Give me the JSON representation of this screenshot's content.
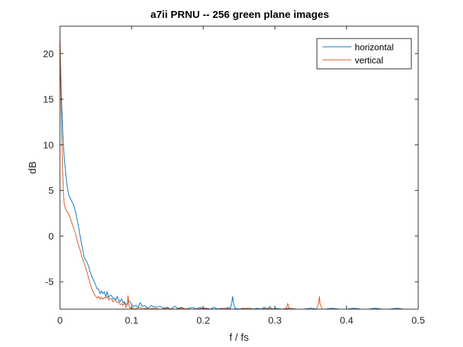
{
  "chart_data": {
    "type": "line",
    "title": "a7ii PRNU -- 256 green plane images",
    "xlabel": "f / fs",
    "ylabel": "dB",
    "xlim": [
      0,
      0.5
    ],
    "ylim": [
      -8,
      23
    ],
    "xticks": [
      0,
      0.1,
      0.2,
      0.3,
      0.4,
      0.5
    ],
    "xtick_labels": [
      "0",
      "0.1",
      "0.2",
      "0.3",
      "0.4",
      "0.5"
    ],
    "yticks": [
      -5,
      0,
      5,
      10,
      15,
      20
    ],
    "ytick_labels": [
      "-5",
      "0",
      "5",
      "10",
      "15",
      "20"
    ],
    "grid": false,
    "box": true,
    "legend": {
      "position": "top-right"
    },
    "series": [
      {
        "name": "horizontal",
        "color": "#0072BD",
        "points": [
          [
            0.0,
            21.5
          ],
          [
            0.002,
            15.5
          ],
          [
            0.004,
            11.2
          ],
          [
            0.006,
            8.5
          ],
          [
            0.008,
            7.0
          ],
          [
            0.01,
            5.5
          ],
          [
            0.012,
            4.6
          ],
          [
            0.014,
            4.2
          ],
          [
            0.016,
            3.9
          ],
          [
            0.018,
            3.6
          ],
          [
            0.02,
            3.2
          ],
          [
            0.022,
            2.6
          ],
          [
            0.024,
            1.8
          ],
          [
            0.026,
            1.0
          ],
          [
            0.028,
            0.1
          ],
          [
            0.03,
            -0.7
          ],
          [
            0.032,
            -1.6
          ],
          [
            0.034,
            -2.4
          ],
          [
            0.036,
            -2.6
          ],
          [
            0.038,
            -2.9
          ],
          [
            0.04,
            -3.3
          ],
          [
            0.042,
            -3.9
          ],
          [
            0.044,
            -4.3
          ],
          [
            0.046,
            -4.7
          ],
          [
            0.048,
            -5.0
          ],
          [
            0.05,
            -5.4
          ],
          [
            0.052,
            -5.8
          ],
          [
            0.054,
            -5.8
          ],
          [
            0.056,
            -6.3
          ],
          [
            0.058,
            -6.0
          ],
          [
            0.06,
            -6.3
          ],
          [
            0.062,
            -6.1
          ],
          [
            0.064,
            -6.6
          ],
          [
            0.066,
            -6.1
          ],
          [
            0.068,
            -6.7
          ],
          [
            0.07,
            -6.5
          ],
          [
            0.072,
            -6.5
          ],
          [
            0.074,
            -6.9
          ],
          [
            0.076,
            -6.8
          ],
          [
            0.078,
            -7.0
          ],
          [
            0.08,
            -6.6
          ],
          [
            0.082,
            -7.0
          ],
          [
            0.084,
            -7.2
          ],
          [
            0.086,
            -6.9
          ],
          [
            0.088,
            -7.3
          ],
          [
            0.09,
            -7.2
          ],
          [
            0.092,
            -7.5
          ],
          [
            0.094,
            -7.4
          ],
          [
            0.096,
            -7.1
          ],
          [
            0.098,
            -7.2
          ],
          [
            0.1,
            -7.5
          ],
          [
            0.103,
            -7.7
          ],
          [
            0.106,
            -7.6
          ],
          [
            0.109,
            -7.8
          ],
          [
            0.112,
            -7.3
          ],
          [
            0.115,
            -7.7
          ],
          [
            0.118,
            -7.6
          ],
          [
            0.121,
            -7.8
          ],
          [
            0.124,
            -7.9
          ],
          [
            0.127,
            -7.6
          ],
          [
            0.13,
            -7.7
          ],
          [
            0.135,
            -7.8
          ],
          [
            0.14,
            -7.7
          ],
          [
            0.145,
            -7.9
          ],
          [
            0.15,
            -7.8
          ],
          [
            0.155,
            -8.0
          ],
          [
            0.16,
            -7.7
          ],
          [
            0.165,
            -7.9
          ],
          [
            0.17,
            -7.8
          ],
          [
            0.175,
            -8.0
          ],
          [
            0.18,
            -7.9
          ],
          [
            0.185,
            -7.8
          ],
          [
            0.19,
            -8.0
          ],
          [
            0.195,
            -7.8
          ],
          [
            0.2,
            -7.9
          ],
          [
            0.205,
            -7.9
          ],
          [
            0.21,
            -8.0
          ],
          [
            0.215,
            -7.8
          ],
          [
            0.22,
            -8.0
          ],
          [
            0.225,
            -7.9
          ],
          [
            0.23,
            -8.0
          ],
          [
            0.235,
            -7.8
          ],
          [
            0.238,
            -7.9
          ],
          [
            0.24,
            -7.2
          ],
          [
            0.241,
            -6.6
          ],
          [
            0.242,
            -7.2
          ],
          [
            0.244,
            -7.9
          ],
          [
            0.25,
            -8.0
          ],
          [
            0.255,
            -7.9
          ],
          [
            0.26,
            -8.0
          ],
          [
            0.265,
            -7.9
          ],
          [
            0.27,
            -8.0
          ],
          [
            0.275,
            -7.9
          ],
          [
            0.28,
            -8.0
          ],
          [
            0.285,
            -7.8
          ],
          [
            0.29,
            -8.0
          ],
          [
            0.293,
            -7.7
          ],
          [
            0.296,
            -8.0
          ],
          [
            0.3,
            -7.9
          ],
          [
            0.31,
            -8.0
          ],
          [
            0.32,
            -7.9
          ],
          [
            0.33,
            -8.0
          ],
          [
            0.34,
            -8.0
          ],
          [
            0.35,
            -7.9
          ],
          [
            0.36,
            -8.0
          ],
          [
            0.37,
            -8.0
          ],
          [
            0.38,
            -7.9
          ],
          [
            0.39,
            -8.0
          ],
          [
            0.4,
            -8.0
          ],
          [
            0.41,
            -7.9
          ],
          [
            0.42,
            -8.0
          ],
          [
            0.43,
            -8.0
          ],
          [
            0.44,
            -7.9
          ],
          [
            0.45,
            -8.0
          ],
          [
            0.46,
            -8.0
          ],
          [
            0.47,
            -7.9
          ],
          [
            0.48,
            -8.0
          ],
          [
            0.49,
            -8.0
          ],
          [
            0.5,
            -8.0
          ]
        ]
      },
      {
        "name": "vertical",
        "color": "#D95319",
        "points": [
          [
            0.0,
            22.5
          ],
          [
            0.001,
            17.0
          ],
          [
            0.002,
            13.0
          ],
          [
            0.003,
            9.5
          ],
          [
            0.004,
            6.5
          ],
          [
            0.005,
            4.5
          ],
          [
            0.006,
            3.5
          ],
          [
            0.008,
            2.9
          ],
          [
            0.01,
            2.7
          ],
          [
            0.012,
            2.4
          ],
          [
            0.014,
            2.1
          ],
          [
            0.016,
            1.6
          ],
          [
            0.018,
            1.1
          ],
          [
            0.02,
            0.7
          ],
          [
            0.022,
            0.2
          ],
          [
            0.024,
            -0.5
          ],
          [
            0.026,
            -1.0
          ],
          [
            0.028,
            -1.5
          ],
          [
            0.03,
            -2.1
          ],
          [
            0.032,
            -2.6
          ],
          [
            0.034,
            -3.0
          ],
          [
            0.036,
            -3.5
          ],
          [
            0.038,
            -4.0
          ],
          [
            0.04,
            -4.6
          ],
          [
            0.042,
            -5.1
          ],
          [
            0.044,
            -5.7
          ],
          [
            0.046,
            -6.0
          ],
          [
            0.048,
            -6.4
          ],
          [
            0.05,
            -6.6
          ],
          [
            0.052,
            -6.8
          ],
          [
            0.054,
            -6.6
          ],
          [
            0.056,
            -6.9
          ],
          [
            0.058,
            -6.7
          ],
          [
            0.06,
            -6.9
          ],
          [
            0.062,
            -6.7
          ],
          [
            0.064,
            -6.8
          ],
          [
            0.066,
            -6.6
          ],
          [
            0.068,
            -7.0
          ],
          [
            0.07,
            -6.8
          ],
          [
            0.072,
            -6.9
          ],
          [
            0.074,
            -7.2
          ],
          [
            0.076,
            -7.0
          ],
          [
            0.078,
            -7.1
          ],
          [
            0.08,
            -7.3
          ],
          [
            0.082,
            -7.2
          ],
          [
            0.084,
            -7.5
          ],
          [
            0.086,
            -7.4
          ],
          [
            0.088,
            -7.6
          ],
          [
            0.09,
            -7.3
          ],
          [
            0.092,
            -7.8
          ],
          [
            0.094,
            -7.6
          ],
          [
            0.095,
            -6.5
          ],
          [
            0.096,
            -7.6
          ],
          [
            0.098,
            -7.9
          ],
          [
            0.1,
            -7.8
          ],
          [
            0.104,
            -8.0
          ],
          [
            0.108,
            -7.9
          ],
          [
            0.112,
            -7.8
          ],
          [
            0.116,
            -8.0
          ],
          [
            0.12,
            -7.9
          ],
          [
            0.125,
            -8.0
          ],
          [
            0.13,
            -7.9
          ],
          [
            0.14,
            -8.0
          ],
          [
            0.15,
            -7.9
          ],
          [
            0.16,
            -8.0
          ],
          [
            0.17,
            -7.9
          ],
          [
            0.18,
            -8.0
          ],
          [
            0.19,
            -8.0
          ],
          [
            0.2,
            -7.9
          ],
          [
            0.21,
            -8.0
          ],
          [
            0.22,
            -8.0
          ],
          [
            0.23,
            -7.9
          ],
          [
            0.24,
            -8.0
          ],
          [
            0.25,
            -8.0
          ],
          [
            0.26,
            -7.9
          ],
          [
            0.27,
            -8.0
          ],
          [
            0.28,
            -8.0
          ],
          [
            0.29,
            -7.9
          ],
          [
            0.3,
            -8.0
          ],
          [
            0.31,
            -8.0
          ],
          [
            0.316,
            -7.9
          ],
          [
            0.318,
            -7.4
          ],
          [
            0.32,
            -7.9
          ],
          [
            0.33,
            -8.0
          ],
          [
            0.34,
            -8.0
          ],
          [
            0.35,
            -8.0
          ],
          [
            0.358,
            -8.0
          ],
          [
            0.361,
            -7.4
          ],
          [
            0.362,
            -6.6
          ],
          [
            0.363,
            -7.4
          ],
          [
            0.366,
            -8.0
          ],
          [
            0.38,
            -8.0
          ],
          [
            0.4,
            -8.0
          ],
          [
            0.42,
            -8.0
          ],
          [
            0.44,
            -8.0
          ],
          [
            0.46,
            -8.0
          ],
          [
            0.48,
            -8.0
          ],
          [
            0.5,
            -8.0
          ]
        ]
      }
    ]
  }
}
